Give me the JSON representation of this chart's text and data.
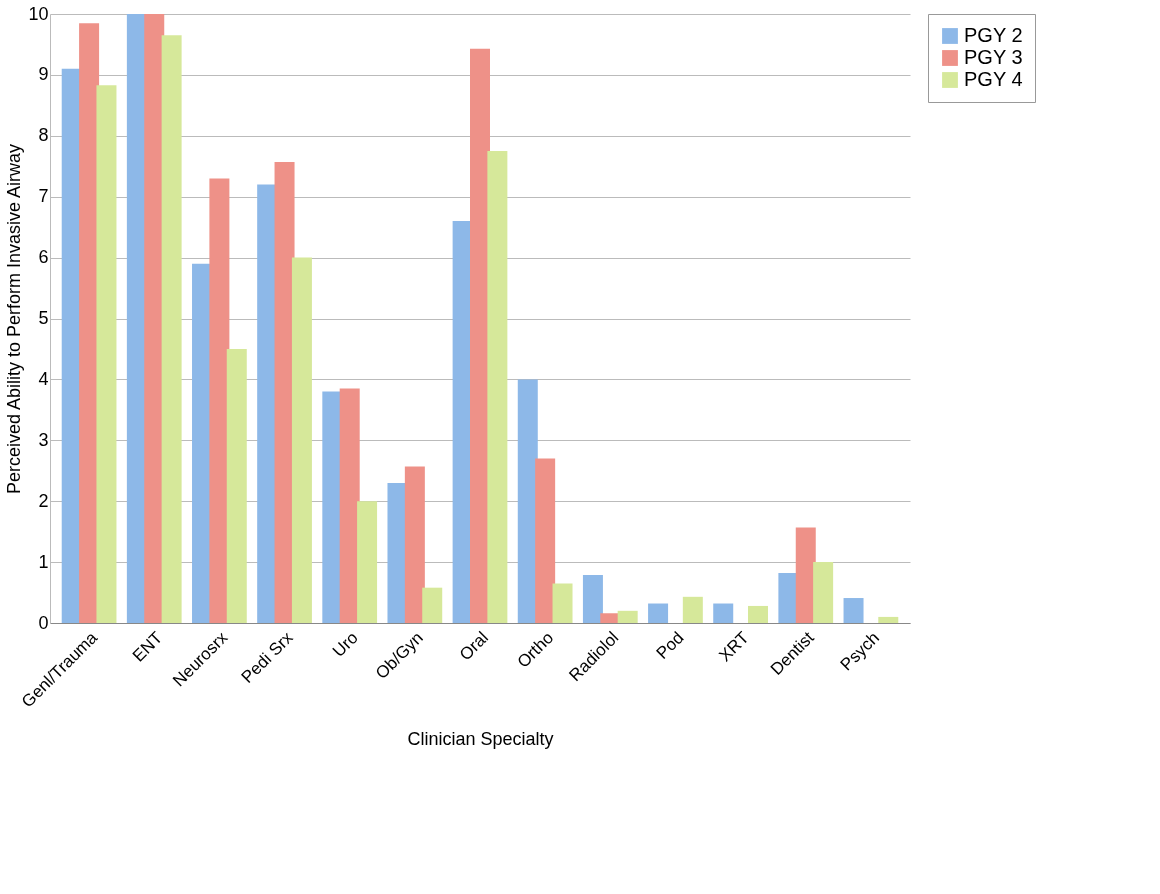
{
  "chart_data": {
    "type": "bar",
    "xlabel": "Clinician Specialty",
    "ylabel": "Perceived Ability to Perform Invasive Airway",
    "categories": [
      "Genl/Trauma",
      "ENT",
      "Neurosrx",
      "Pedi Srx",
      "Uro",
      "Ob/Gyn",
      "Oral",
      "Ortho",
      "Radiolol",
      "Pod",
      "XRT",
      "Dentist",
      "Psych"
    ],
    "series": [
      {
        "name": "PGY 2",
        "color": "#8db8e8",
        "values": [
          9.1,
          10,
          5.9,
          7.2,
          3.8,
          2.3,
          6.6,
          4.0,
          0.79,
          0.32,
          0.32,
          0.82,
          0.41
        ]
      },
      {
        "name": "PGY 3",
        "color": "#ee9188",
        "values": [
          9.85,
          10,
          7.3,
          7.57,
          3.85,
          2.57,
          9.43,
          2.7,
          0.16,
          null,
          null,
          1.57,
          null
        ]
      },
      {
        "name": "PGY 4",
        "color": "#d6e89a",
        "values": [
          8.83,
          9.65,
          4.5,
          6.0,
          2.0,
          0.58,
          7.75,
          0.65,
          0.2,
          0.43,
          0.28,
          1.0,
          0.1
        ]
      }
    ],
    "ylim": [
      0,
      10
    ],
    "yticks": [
      0,
      1,
      2,
      3,
      4,
      5,
      6,
      7,
      8,
      9,
      10
    ],
    "grid": "y",
    "legend": "right"
  }
}
